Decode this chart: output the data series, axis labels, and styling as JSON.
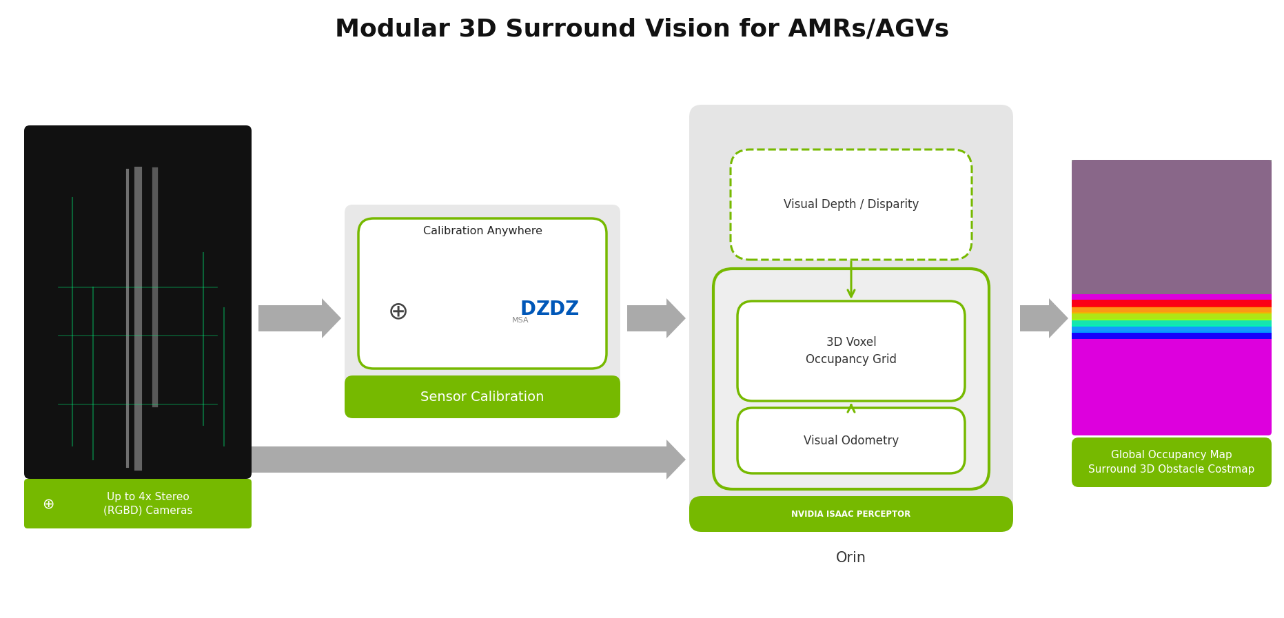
{
  "title": "Modular 3D Surround Vision for AMRs/AGVs",
  "title_fontsize": 26,
  "title_fontweight": "bold",
  "bg_color": "#ffffff",
  "green_color": "#76b900",
  "gray_bg": "#e8e8e8",
  "light_gray": "#f0f0f0",
  "arrow_gray": "#aaaaaa",
  "blue_color": "#0057b8",
  "box1_label_top": "Calibration Anywhere",
  "box1_label_bottom": "Sensor Calibration",
  "box2_label_top": "Visual Depth / Disparity",
  "box2_label_mid": "3D Voxel\nOccupancy Grid",
  "box2_label_bot": "Visual Odometry",
  "box2_footer": "NVIDIA ISAAC PERCEPTOR",
  "box2_title": "Orin",
  "cam_label": "Up to 4x Stereo\n(RGBD) Cameras",
  "output_label": "Global Occupancy Map\nSurround 3D Obstacle Costmap"
}
